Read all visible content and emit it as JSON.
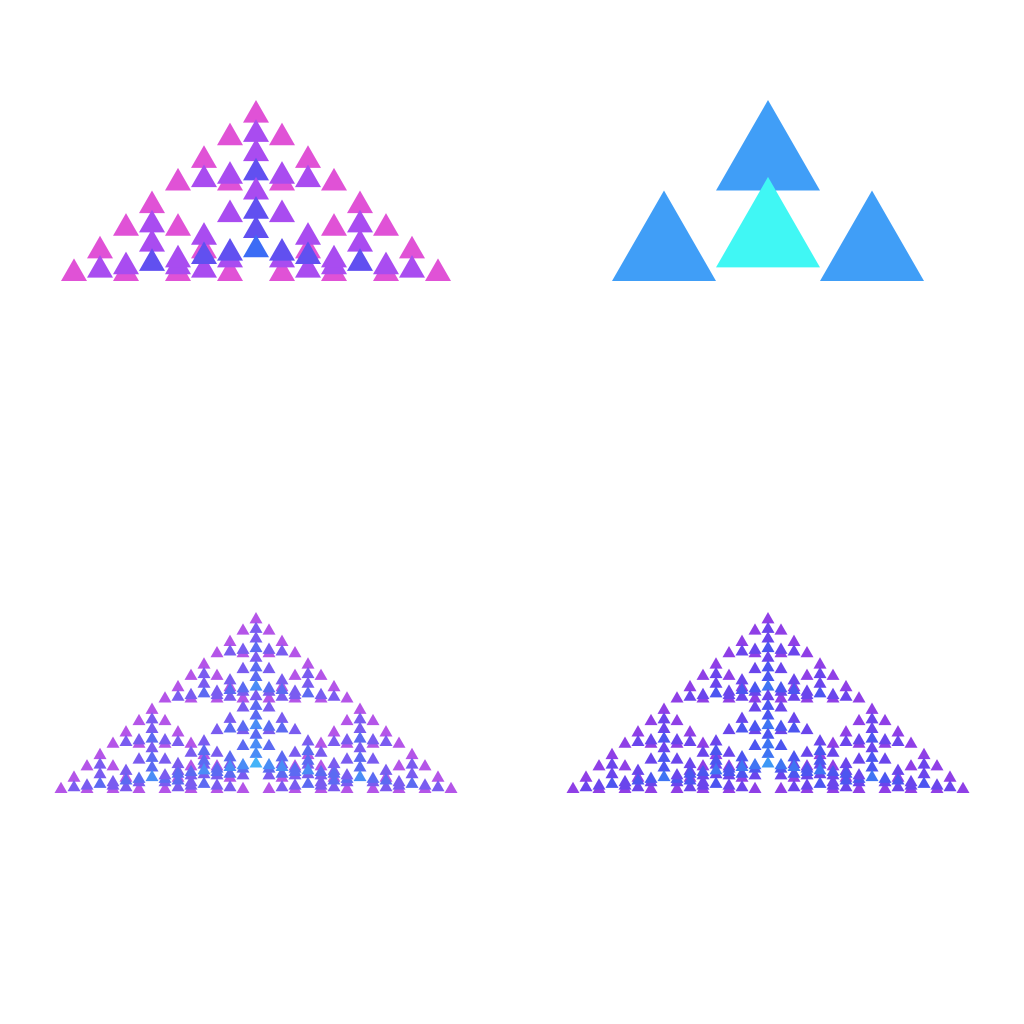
{
  "panels": [
    {
      "id": "top-left",
      "depth": 4,
      "colors": [
        "#e052d6",
        "#a94cf0",
        "#6150f0",
        "#3b6cf5",
        "#46a8f7"
      ]
    },
    {
      "id": "top-right",
      "depth": 2,
      "colors": [
        "#409ef7",
        "#40f7f4",
        "#e85589"
      ]
    },
    {
      "id": "bottom-left",
      "depth": 5,
      "colors": [
        "#b455e8",
        "#7a5cf0",
        "#5c6af2",
        "#4a8cf6",
        "#45b3f8",
        "#45d8fa"
      ]
    },
    {
      "id": "bottom-right",
      "depth": 5,
      "colors": [
        "#8f3fe6",
        "#6a45ec",
        "#4c55f0",
        "#3f74f3",
        "#3d98f6",
        "#40c6f8"
      ]
    }
  ]
}
